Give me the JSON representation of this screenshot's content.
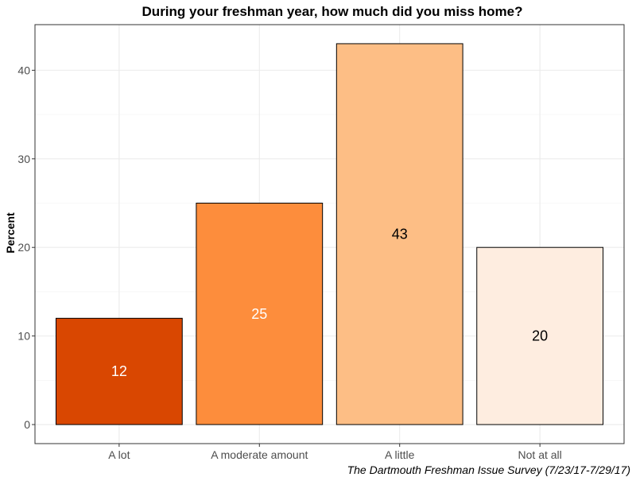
{
  "chart_data": {
    "type": "bar",
    "title": "During your freshman year, how much did you miss home?",
    "xlabel": "",
    "ylabel": "Percent",
    "categories": [
      "A lot",
      "A moderate amount",
      "A little",
      "Not at all"
    ],
    "values": [
      12,
      25,
      43,
      20
    ],
    "data_labels": [
      "12",
      "25",
      "43",
      "20"
    ],
    "bar_colors": [
      "#d94701",
      "#fd8d3c",
      "#fdbe85",
      "#feede0"
    ],
    "label_colors": [
      "#ffffff",
      "#ffffff",
      "#000000",
      "#000000"
    ],
    "ylim": [
      0,
      45
    ],
    "yticks": [
      0,
      10,
      20,
      30,
      40
    ],
    "ytick_labels": [
      "0",
      "10",
      "20",
      "30",
      "40"
    ],
    "grid": true,
    "legend": "none",
    "caption": "The Dartmouth Freshman Issue Survey (7/23/17-7/29/17)"
  }
}
